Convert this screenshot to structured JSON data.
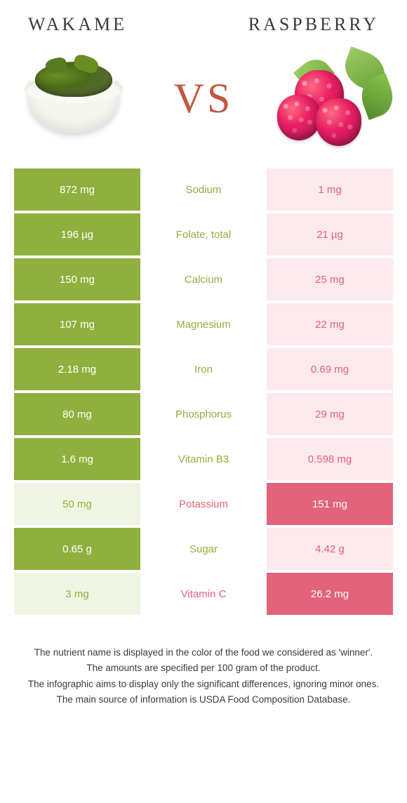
{
  "header": {
    "left_title": "WAKAME",
    "right_title": "RASPBERRY",
    "vs_label": "VS"
  },
  "colors": {
    "left_food": "#8fb03e",
    "right_food": "#e2637a",
    "left_light": "#f0f5e3",
    "right_light": "#fbe9ed",
    "nutrient_left_text": "#8fb03e",
    "nutrient_right_text": "#e2637a",
    "cell_text": "#ffffff"
  },
  "rows": [
    {
      "left": "872 mg",
      "name": "Sodium",
      "right": "1 mg",
      "winner": "left"
    },
    {
      "left": "196 µg",
      "name": "Folate, total",
      "right": "21 µg",
      "winner": "left"
    },
    {
      "left": "150 mg",
      "name": "Calcium",
      "right": "25 mg",
      "winner": "left"
    },
    {
      "left": "107 mg",
      "name": "Magnesium",
      "right": "22 mg",
      "winner": "left"
    },
    {
      "left": "2.18 mg",
      "name": "Iron",
      "right": "0.69 mg",
      "winner": "left"
    },
    {
      "left": "80 mg",
      "name": "Phosphorus",
      "right": "29 mg",
      "winner": "left"
    },
    {
      "left": "1.6 mg",
      "name": "Vitamin B3",
      "right": "0.598 mg",
      "winner": "left"
    },
    {
      "left": "50 mg",
      "name": "Potassium",
      "right": "151 mg",
      "winner": "right"
    },
    {
      "left": "0.65 g",
      "name": "Sugar",
      "right": "4.42 g",
      "winner": "left"
    },
    {
      "left": "3 mg",
      "name": "Vitamin C",
      "right": "26.2 mg",
      "winner": "right"
    }
  ],
  "footer": {
    "line1": "The nutrient name is displayed in the color of the food we considered as 'winner'.",
    "line2": "The amounts are specified per 100 gram of the product.",
    "line3": "The infographic aims to display only the significant differences, ignoring minor ones.",
    "line4": "The main source of information is USDA Food Composition Database."
  }
}
